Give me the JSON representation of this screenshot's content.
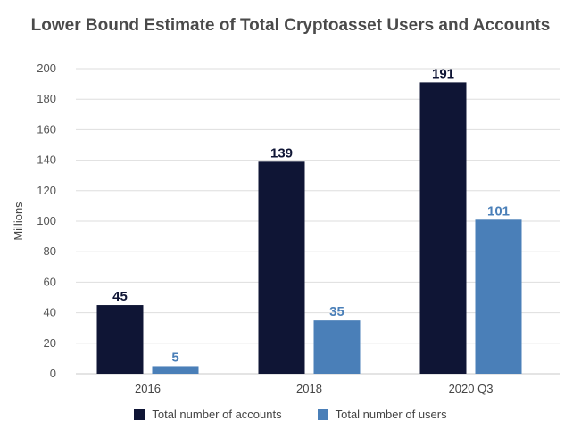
{
  "chart_data": {
    "type": "bar",
    "title": "Lower Bound Estimate of Total Cryptoasset Users and Accounts",
    "xlabel": "",
    "ylabel": "Millions",
    "ylim": [
      0,
      200
    ],
    "yticks": [
      0,
      20,
      40,
      60,
      80,
      100,
      120,
      140,
      160,
      180,
      200
    ],
    "categories": [
      "2016",
      "2018",
      "2020 Q3"
    ],
    "series": [
      {
        "name": "Total number of accounts",
        "values": [
          45,
          139,
          191
        ],
        "color": "#0f1535",
        "label_color": "#0f1535"
      },
      {
        "name": "Total number of users",
        "values": [
          5,
          35,
          101
        ],
        "color": "#4a7fb8",
        "label_color": "#4a7fb8"
      }
    ],
    "grid": true,
    "legend_position": "bottom"
  }
}
